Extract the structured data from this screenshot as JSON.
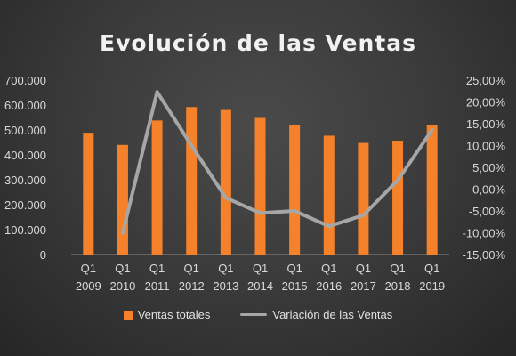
{
  "chart_data": {
    "type": "bar",
    "title": "Evolución de las Ventas",
    "categories": [
      [
        "Q1",
        "2009"
      ],
      [
        "Q1",
        "2010"
      ],
      [
        "Q1",
        "2011"
      ],
      [
        "Q1",
        "2012"
      ],
      [
        "Q1",
        "2013"
      ],
      [
        "Q1",
        "2014"
      ],
      [
        "Q1",
        "2015"
      ],
      [
        "Q1",
        "2016"
      ],
      [
        "Q1",
        "2017"
      ],
      [
        "Q1",
        "2018"
      ],
      [
        "Q1",
        "2019"
      ]
    ],
    "series": [
      {
        "name": "Ventas totales",
        "type": "bar",
        "axis": "left",
        "color": "#f5822a",
        "values": [
          489000,
          440000,
          538000,
          592000,
          580000,
          548000,
          521000,
          477000,
          448000,
          457000,
          519000
        ]
      },
      {
        "name": "Variación de las Ventas",
        "type": "line",
        "axis": "right",
        "color": "#a6a6a6",
        "values": [
          null,
          -10.0,
          22.3,
          10.0,
          -2.0,
          -5.5,
          -5.0,
          -8.5,
          -6.0,
          2.0,
          13.6
        ]
      }
    ],
    "y_left": {
      "min": 0,
      "max": 700000,
      "ticks": [
        0,
        100000,
        200000,
        300000,
        400000,
        500000,
        600000,
        700000
      ],
      "tick_labels": [
        "0",
        "100.000",
        "200.000",
        "300.000",
        "400.000",
        "500.000",
        "600.000",
        "700.000"
      ]
    },
    "y_right": {
      "min": -15,
      "max": 25,
      "ticks": [
        -15,
        -10,
        -5,
        0,
        5,
        10,
        15,
        20,
        25
      ],
      "tick_labels": [
        "-15,00%",
        "-10,00%",
        "-5,00%",
        "0,00%",
        "5,00%",
        "10,00%",
        "15,00%",
        "20,00%",
        "25,00%"
      ]
    },
    "grid": false,
    "legend_position": "bottom"
  }
}
